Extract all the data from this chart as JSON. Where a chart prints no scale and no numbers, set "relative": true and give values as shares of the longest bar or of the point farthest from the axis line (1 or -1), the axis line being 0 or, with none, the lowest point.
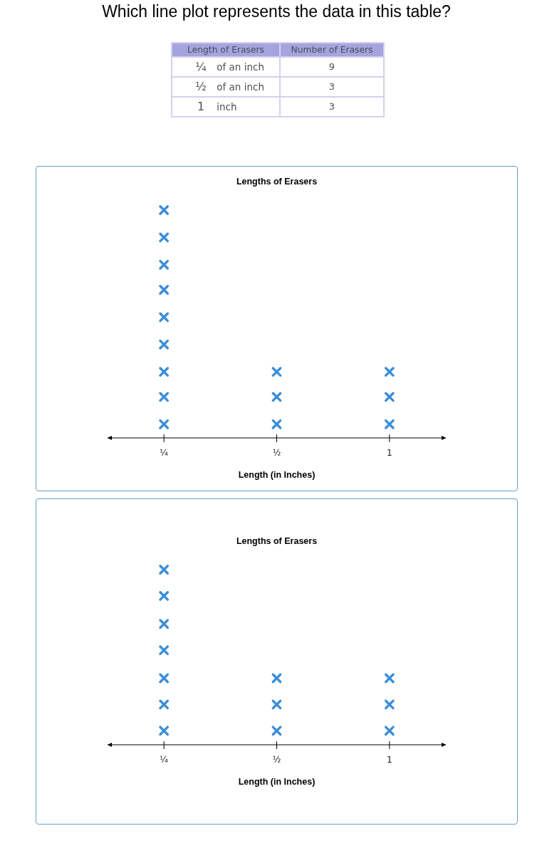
{
  "chart_data": [
    {
      "type": "other",
      "title": "Which line plot represents the data in this table?",
      "xlabel": "Length of Erasers",
      "ylabel": "Number of Erasers",
      "categories": [
        "¼ of an inch",
        "½ of an inch",
        "1 inch"
      ],
      "values": [
        9,
        3,
        3
      ],
      "data_labels": true
    },
    {
      "type": "scatter",
      "title": "Lengths of Erasers",
      "xlabel": "Length (in Inches)",
      "categories": [
        "¼",
        "½",
        "1"
      ],
      "relative": true,
      "marker": "cross",
      "series": [
        {
          "color": "#3b8ed6",
          "x": [
            "¼",
            "¼",
            "¼",
            "¼",
            "¼",
            "¼",
            "¼",
            "¼",
            "¼",
            "½",
            "½",
            "½",
            "1",
            "1",
            "1"
          ],
          "values": [
            0.06,
            0.18,
            0.29,
            0.41,
            0.53,
            0.65,
            0.76,
            0.88,
            1,
            0.06,
            0.18,
            0.29,
            0.06,
            0.18,
            0.29
          ]
        }
      ]
    },
    {
      "type": "scatter",
      "title": "Lengths of Erasers",
      "xlabel": "Length (in Inches)",
      "categories": [
        "¼",
        "½",
        "1"
      ],
      "relative": true,
      "marker": "cross",
      "series": [
        {
          "color": "#3b8ed6",
          "x": [
            "¼",
            "¼",
            "¼",
            "¼",
            "¼",
            "¼",
            "¼",
            "½",
            "½",
            "½",
            "1",
            "1",
            "1"
          ],
          "values": [
            0.08,
            0.23,
            0.38,
            0.54,
            0.69,
            0.85,
            1,
            0.08,
            0.23,
            0.38,
            0.08,
            0.23,
            0.38
          ]
        }
      ]
    }
  ]
}
